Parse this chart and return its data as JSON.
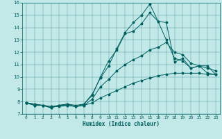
{
  "xlabel": "Humidex (Indice chaleur)",
  "bg_color": "#c2e8e8",
  "line_color": "#006060",
  "xlim": [
    -0.5,
    23.5
  ],
  "ylim": [
    7,
    16
  ],
  "x_ticks": [
    0,
    1,
    2,
    3,
    4,
    5,
    6,
    7,
    8,
    9,
    10,
    11,
    12,
    13,
    14,
    15,
    16,
    17,
    18,
    19,
    20,
    21,
    22,
    23
  ],
  "y_ticks": [
    7,
    8,
    9,
    10,
    11,
    12,
    13,
    14,
    15,
    16
  ],
  "line1_y": [
    7.9,
    7.8,
    7.7,
    7.6,
    7.7,
    7.8,
    7.7,
    7.8,
    8.6,
    9.9,
    10.9,
    12.3,
    13.6,
    14.4,
    15.0,
    15.9,
    14.5,
    13.0,
    11.5,
    11.3,
    10.7,
    10.9,
    10.3,
    10.2
  ],
  "line2_y": [
    7.9,
    7.8,
    7.7,
    7.5,
    7.7,
    7.8,
    7.6,
    7.8,
    8.5,
    10.0,
    11.3,
    12.2,
    13.5,
    13.7,
    14.3,
    15.2,
    14.5,
    14.4,
    11.2,
    11.5,
    10.7,
    10.9,
    10.9,
    10.2
  ],
  "line3_y": [
    7.9,
    7.7,
    7.7,
    7.5,
    7.7,
    7.7,
    7.6,
    7.7,
    8.2,
    9.2,
    9.8,
    10.5,
    11.0,
    11.4,
    11.7,
    12.2,
    12.4,
    12.8,
    12.0,
    11.8,
    11.1,
    10.9,
    10.7,
    10.5
  ],
  "line4_y": [
    7.9,
    7.7,
    7.7,
    7.6,
    7.6,
    7.7,
    7.6,
    7.7,
    7.9,
    8.3,
    8.6,
    8.9,
    9.2,
    9.5,
    9.7,
    9.9,
    10.1,
    10.2,
    10.3,
    10.3,
    10.3,
    10.3,
    10.2,
    10.2
  ]
}
